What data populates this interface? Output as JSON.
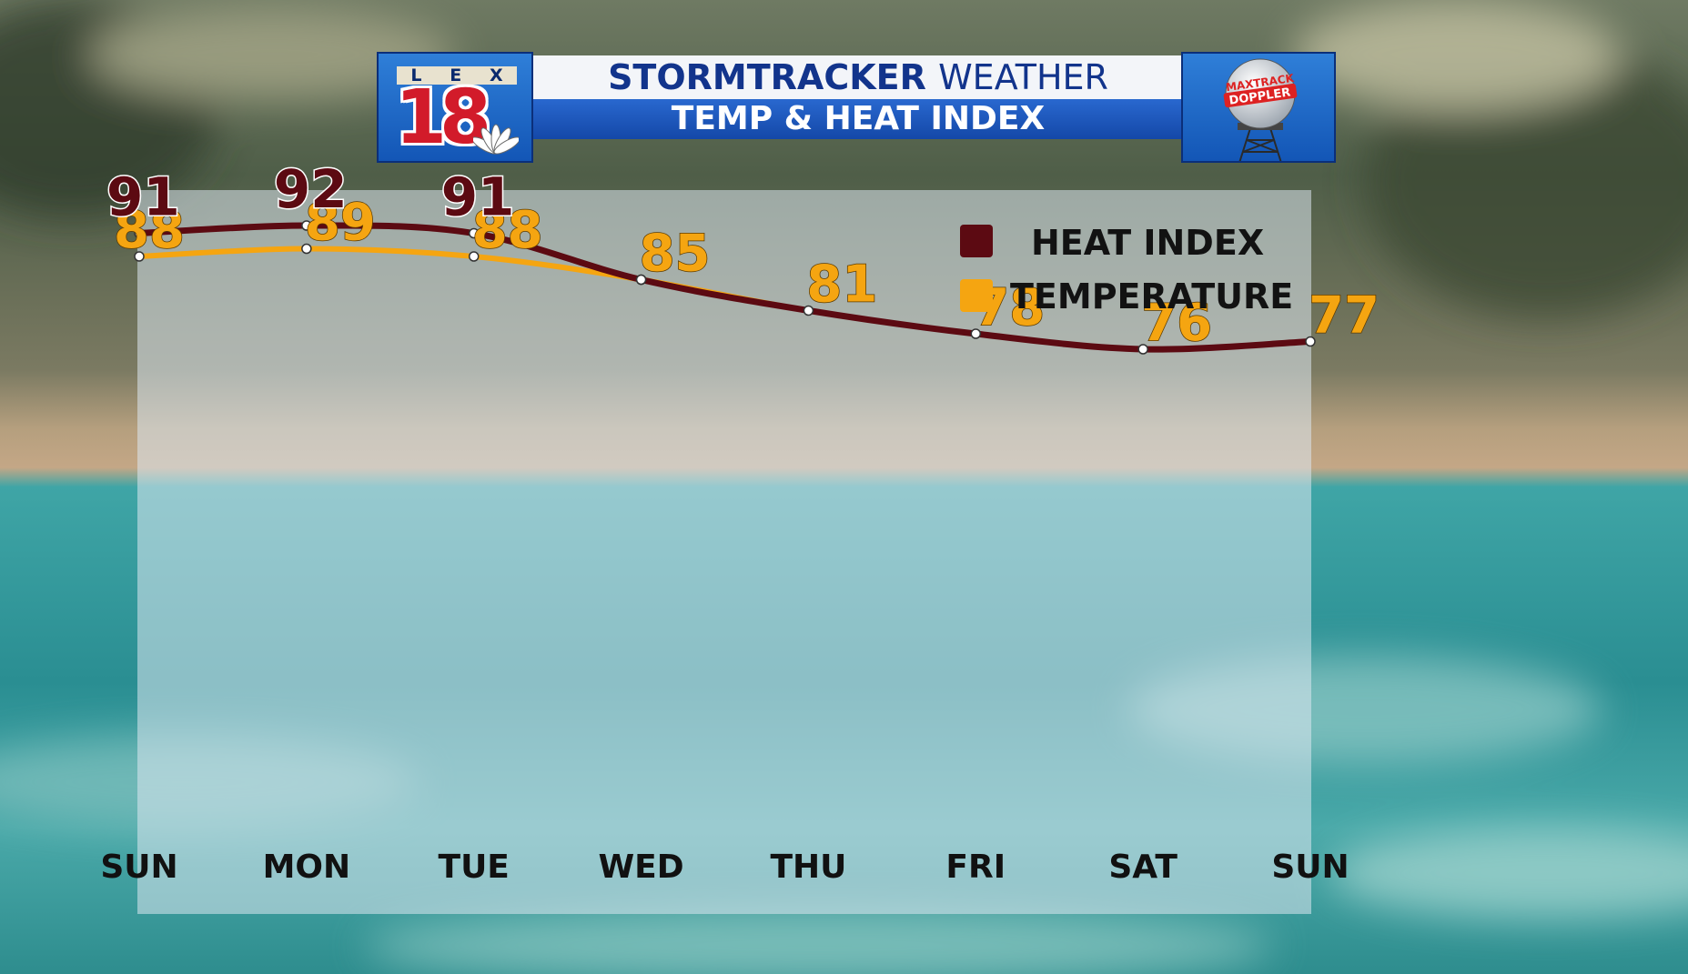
{
  "header": {
    "logo_letters": [
      "L",
      "E",
      "X"
    ],
    "logo_number": "18",
    "title_bold": "STORMTRACKER",
    "title_light": "WEATHER",
    "subtitle": "TEMP & HEAT INDEX",
    "radar_badge_line1": "MAXTRACK",
    "radar_badge_line2": "DOPPLER"
  },
  "colors": {
    "heat_index": "#5c0a12",
    "temperature": "#f5a511",
    "header_blue": "#1a52b8",
    "title_navy": "#12348c"
  },
  "chart_data": {
    "type": "line",
    "categories": [
      "SUN",
      "MON",
      "TUE",
      "WED",
      "THU",
      "FRI",
      "SAT",
      "SUN"
    ],
    "series": [
      {
        "name": "HEAT INDEX",
        "values": [
          91,
          92,
          91,
          85,
          null,
          null,
          null,
          null
        ],
        "color": "#5c0a12"
      },
      {
        "name": "TEMPERATURE",
        "values": [
          88,
          89,
          88,
          85,
          81,
          78,
          76,
          77
        ],
        "color": "#f5a511"
      }
    ],
    "ylim": [
      70,
      95
    ],
    "grid": false,
    "legend_position": "top-right",
    "note_values_merge": "heat index line follows temperature line from WED onward"
  }
}
